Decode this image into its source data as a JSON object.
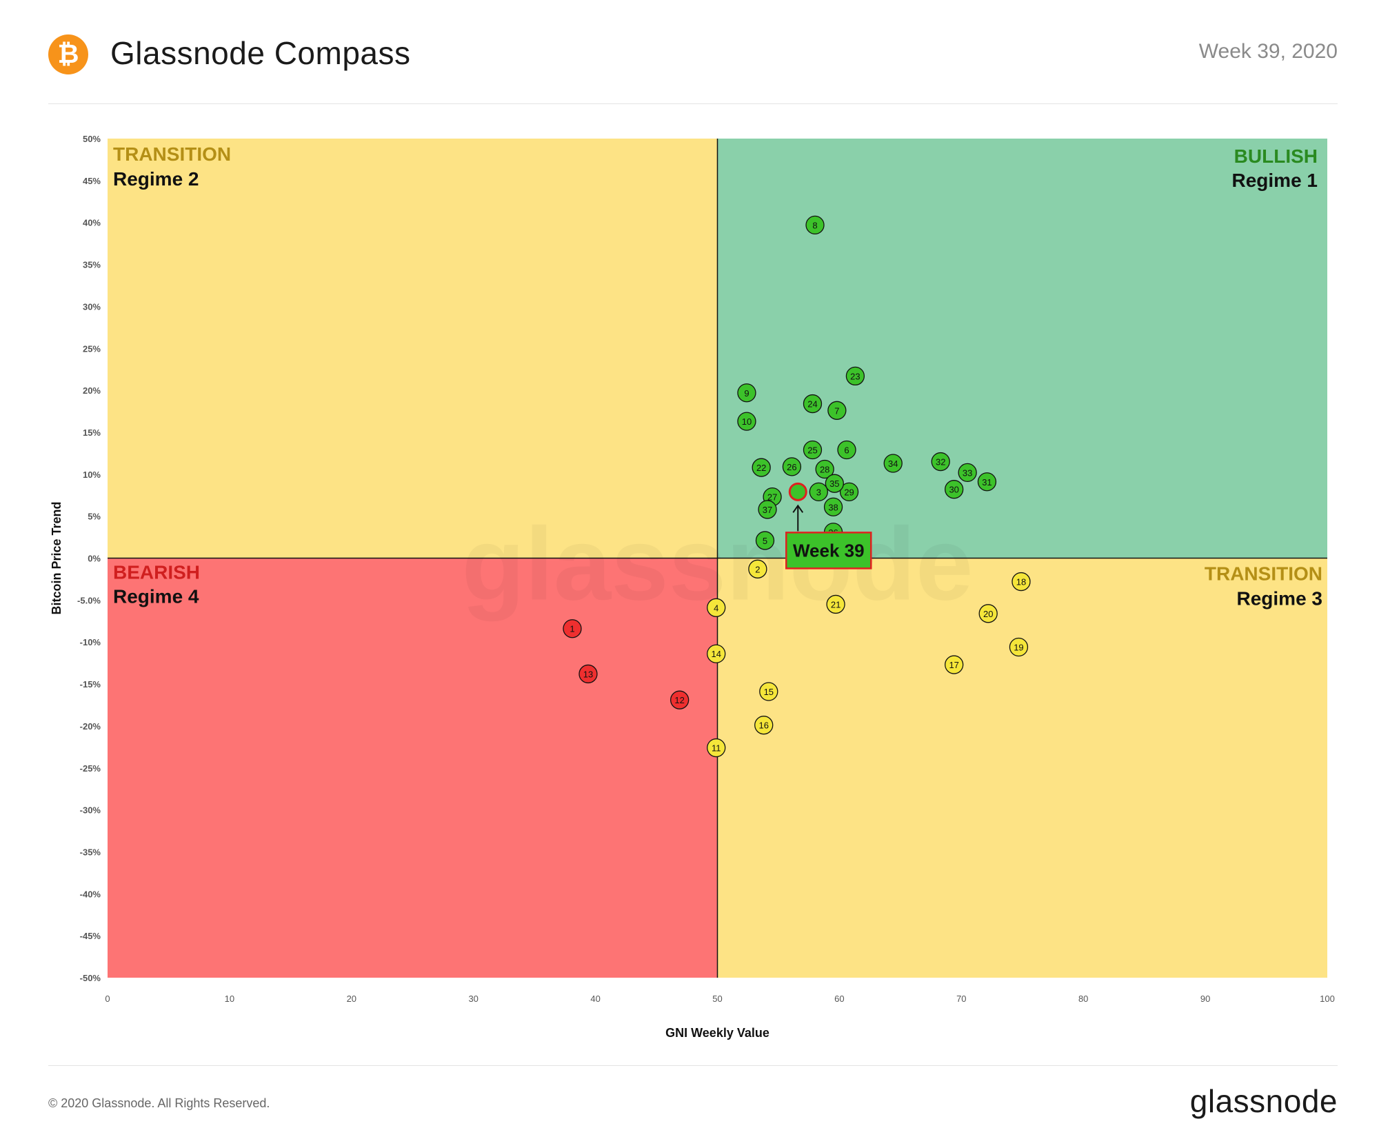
{
  "header": {
    "logo_glyph": "₿",
    "title": "Glassnode Compass",
    "week_label": "Week 39, 2020"
  },
  "footer": {
    "copyright": "© 2020 Glassnode. All Rights Reserved.",
    "brand": "glassnode"
  },
  "colors": {
    "bullish_bg": "#8ad0aa",
    "transition_bg": "#fde385",
    "bearish_bg": "#fd7474",
    "point_bullish": "#3cc22a",
    "point_transition": "#f5e63a",
    "point_bearish": "#ef2f2f",
    "bullish_text": "#2a8a20",
    "transition_text": "#b48f16",
    "bearish_text": "#d01f1f"
  },
  "chart_data": {
    "type": "scatter",
    "title": "",
    "xlabel": "GNI  Weekly Value",
    "ylabel": "Bitcoin  Price Trend",
    "xlim": [
      0,
      100
    ],
    "ylim": [
      -50,
      50
    ],
    "x_ticks": [
      "0",
      "10",
      "20",
      "30",
      "40",
      "50",
      "60",
      "70",
      "80",
      "90",
      "100"
    ],
    "y_ticks": [
      "50%",
      "45%",
      "40%",
      "35%",
      "30%",
      "25%",
      "20%",
      "15%",
      "10%",
      "5%",
      "0%",
      "-5.0%",
      "-10%",
      "-15%",
      "-20%",
      "-25%",
      "-30%",
      "-35%",
      "-40%",
      "-45%",
      "-50%"
    ],
    "quadrants": [
      {
        "regime": "TRANSITION",
        "label": "Regime 2",
        "position": "top-left",
        "color": "#fde385"
      },
      {
        "regime": "BULLISH",
        "label": "Regime 1",
        "position": "top-right",
        "color": "#8ad0aa"
      },
      {
        "regime": "BEARISH",
        "label": "Regime 4",
        "position": "bottom-left",
        "color": "#fd7474"
      },
      {
        "regime": "TRANSITION",
        "label": "Regime 3",
        "position": "bottom-right",
        "color": "#fde385"
      }
    ],
    "points": [
      {
        "label": "1",
        "x": 38.1,
        "y": -8.4,
        "regime": "bearish"
      },
      {
        "label": "2",
        "x": 53.3,
        "y": -1.3,
        "regime": "transition"
      },
      {
        "label": "3",
        "x": 58.3,
        "y": 7.9,
        "regime": "bullish"
      },
      {
        "label": "4",
        "x": 49.9,
        "y": -5.9,
        "regime": "transition"
      },
      {
        "label": "5",
        "x": 53.9,
        "y": 2.1,
        "regime": "bullish"
      },
      {
        "label": "6",
        "x": 60.6,
        "y": 12.9,
        "regime": "bullish"
      },
      {
        "label": "7",
        "x": 59.8,
        "y": 17.6,
        "regime": "bullish"
      },
      {
        "label": "8",
        "x": 58.0,
        "y": 39.7,
        "regime": "bullish"
      },
      {
        "label": "9",
        "x": 52.4,
        "y": 19.7,
        "regime": "bullish"
      },
      {
        "label": "10",
        "x": 52.4,
        "y": 16.3,
        "regime": "bullish"
      },
      {
        "label": "11",
        "x": 49.9,
        "y": -22.6,
        "regime": "transition"
      },
      {
        "label": "12",
        "x": 46.9,
        "y": -16.9,
        "regime": "bearish"
      },
      {
        "label": "13",
        "x": 39.4,
        "y": -13.8,
        "regime": "bearish"
      },
      {
        "label": "14",
        "x": 49.9,
        "y": -11.4,
        "regime": "transition"
      },
      {
        "label": "15",
        "x": 54.2,
        "y": -15.9,
        "regime": "transition"
      },
      {
        "label": "16",
        "x": 53.8,
        "y": -19.9,
        "regime": "transition"
      },
      {
        "label": "17",
        "x": 69.4,
        "y": -12.7,
        "regime": "transition"
      },
      {
        "label": "18",
        "x": 74.9,
        "y": -2.8,
        "regime": "transition"
      },
      {
        "label": "19",
        "x": 74.7,
        "y": -10.6,
        "regime": "transition"
      },
      {
        "label": "20",
        "x": 72.2,
        "y": -6.6,
        "regime": "transition"
      },
      {
        "label": "21",
        "x": 59.7,
        "y": -5.5,
        "regime": "transition"
      },
      {
        "label": "22",
        "x": 53.6,
        "y": 10.8,
        "regime": "bullish"
      },
      {
        "label": "23",
        "x": 61.3,
        "y": 21.7,
        "regime": "bullish"
      },
      {
        "label": "24",
        "x": 57.8,
        "y": 18.4,
        "regime": "bullish"
      },
      {
        "label": "25",
        "x": 57.8,
        "y": 12.9,
        "regime": "bullish"
      },
      {
        "label": "26",
        "x": 56.1,
        "y": 10.9,
        "regime": "bullish"
      },
      {
        "label": "27",
        "x": 54.5,
        "y": 7.3,
        "regime": "bullish"
      },
      {
        "label": "28",
        "x": 58.8,
        "y": 10.6,
        "regime": "bullish"
      },
      {
        "label": "29",
        "x": 60.8,
        "y": 7.9,
        "regime": "bullish"
      },
      {
        "label": "30",
        "x": 69.4,
        "y": 8.2,
        "regime": "bullish"
      },
      {
        "label": "31",
        "x": 72.1,
        "y": 9.1,
        "regime": "bullish"
      },
      {
        "label": "32",
        "x": 68.3,
        "y": 11.5,
        "regime": "bullish"
      },
      {
        "label": "33",
        "x": 70.5,
        "y": 10.2,
        "regime": "bullish"
      },
      {
        "label": "34",
        "x": 64.4,
        "y": 11.3,
        "regime": "bullish"
      },
      {
        "label": "35",
        "x": 59.6,
        "y": 8.9,
        "regime": "bullish"
      },
      {
        "label": "36",
        "x": 59.5,
        "y": 3.1,
        "regime": "bullish"
      },
      {
        "label": "37",
        "x": 54.1,
        "y": 5.8,
        "regime": "bullish"
      },
      {
        "label": "38",
        "x": 59.5,
        "y": 6.1,
        "regime": "bullish"
      }
    ],
    "current_point": {
      "x": 56.6,
      "y": 7.9,
      "annotation": "Week 39"
    },
    "grid": false,
    "legend": "none",
    "watermark": "glassnode"
  }
}
